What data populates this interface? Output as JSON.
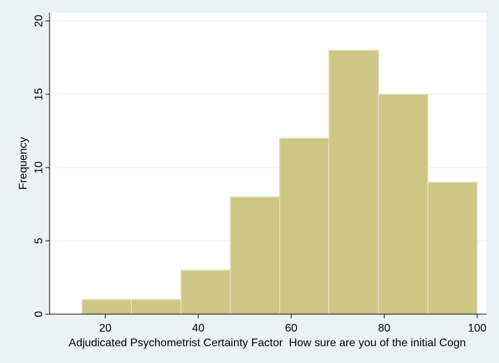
{
  "chart_data": {
    "type": "bar",
    "subtype": "histogram",
    "xlabel": "Adjudicated Psychometrist Certainty Factor  How sure are you of the initial Cogn",
    "ylabel": "Frequency",
    "xlim": [
      8,
      102
    ],
    "ylim": [
      0,
      20
    ],
    "x_ticks": [
      20,
      40,
      60,
      80,
      100
    ],
    "y_ticks": [
      0,
      5,
      10,
      15,
      20
    ],
    "grid": "horizontal",
    "bins": [
      {
        "start": 15.0,
        "end": 25.6,
        "count": 1
      },
      {
        "start": 25.6,
        "end": 36.3,
        "count": 1
      },
      {
        "start": 36.3,
        "end": 46.9,
        "count": 3
      },
      {
        "start": 46.9,
        "end": 57.5,
        "count": 8
      },
      {
        "start": 57.5,
        "end": 68.1,
        "count": 12
      },
      {
        "start": 68.1,
        "end": 78.8,
        "count": 18
      },
      {
        "start": 78.8,
        "end": 89.4,
        "count": 15
      },
      {
        "start": 89.4,
        "end": 100.0,
        "count": 9
      }
    ],
    "colors": {
      "bar_fill": "#cdc685",
      "bar_stroke": "#e4e0bc",
      "plot_bg": "#ffffff",
      "outer_bg": "#eaf2f3",
      "grid": "#eaf2f3",
      "axis": "#000000"
    }
  }
}
